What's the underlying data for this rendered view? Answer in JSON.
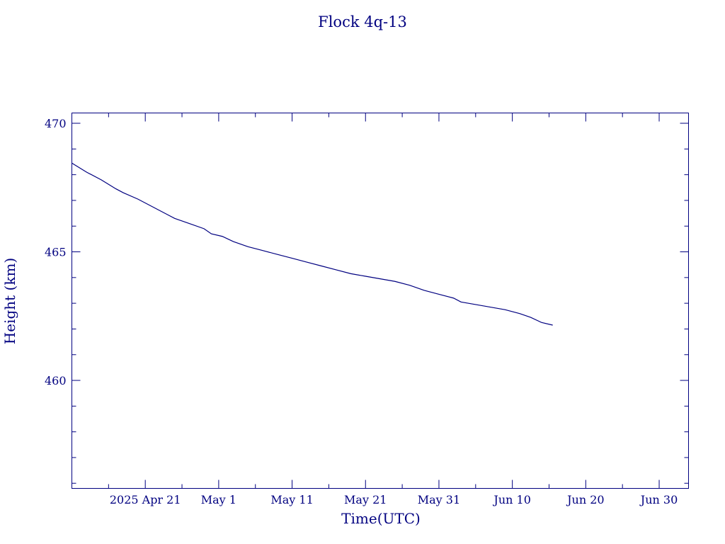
{
  "chart_data": {
    "type": "line",
    "title": "Flock 4q-13",
    "xlabel": "Time(UTC)",
    "ylabel": "Height (km)",
    "x_unit": "day-of-year 2025",
    "xlim": [
      101,
      185
    ],
    "ylim": [
      455.8,
      470.4
    ],
    "x_major_ticks": [
      {
        "value": 111,
        "label": "2025 Apr 21"
      },
      {
        "value": 121,
        "label": "May  1"
      },
      {
        "value": 131,
        "label": "May 11"
      },
      {
        "value": 141,
        "label": "May 21"
      },
      {
        "value": 151,
        "label": "May 31"
      },
      {
        "value": 161,
        "label": "Jun 10"
      },
      {
        "value": 171,
        "label": "Jun 20"
      },
      {
        "value": 181,
        "label": "Jun 30"
      }
    ],
    "y_major_ticks": [
      460,
      465,
      470
    ],
    "y_minor_step": 1,
    "x_minor_step": 5,
    "grid": false,
    "color": "#000080",
    "series": [
      {
        "x": [
          101.0,
          103.0,
          105.0,
          107.0,
          108.0,
          110.0,
          112.0,
          114.0,
          115.0,
          117.0,
          119.0,
          120.0,
          121.5,
          123.0,
          125.0,
          127.0,
          129.0,
          131.0,
          133.0,
          135.0,
          137.0,
          139.0,
          141.0,
          143.0,
          145.0,
          147.0,
          149.0,
          151.0,
          153.0,
          154.0,
          156.0,
          158.0,
          160.0,
          162.0,
          163.5,
          165.0,
          166.5
        ],
        "y": [
          468.45,
          468.1,
          467.8,
          467.45,
          467.3,
          467.05,
          466.75,
          466.45,
          466.3,
          466.1,
          465.9,
          465.7,
          465.6,
          465.4,
          465.2,
          465.05,
          464.9,
          464.75,
          464.6,
          464.45,
          464.3,
          464.15,
          464.05,
          463.95,
          463.85,
          463.7,
          463.5,
          463.35,
          463.2,
          463.05,
          462.95,
          462.85,
          462.75,
          462.6,
          462.45,
          462.25,
          462.15
        ]
      }
    ]
  }
}
